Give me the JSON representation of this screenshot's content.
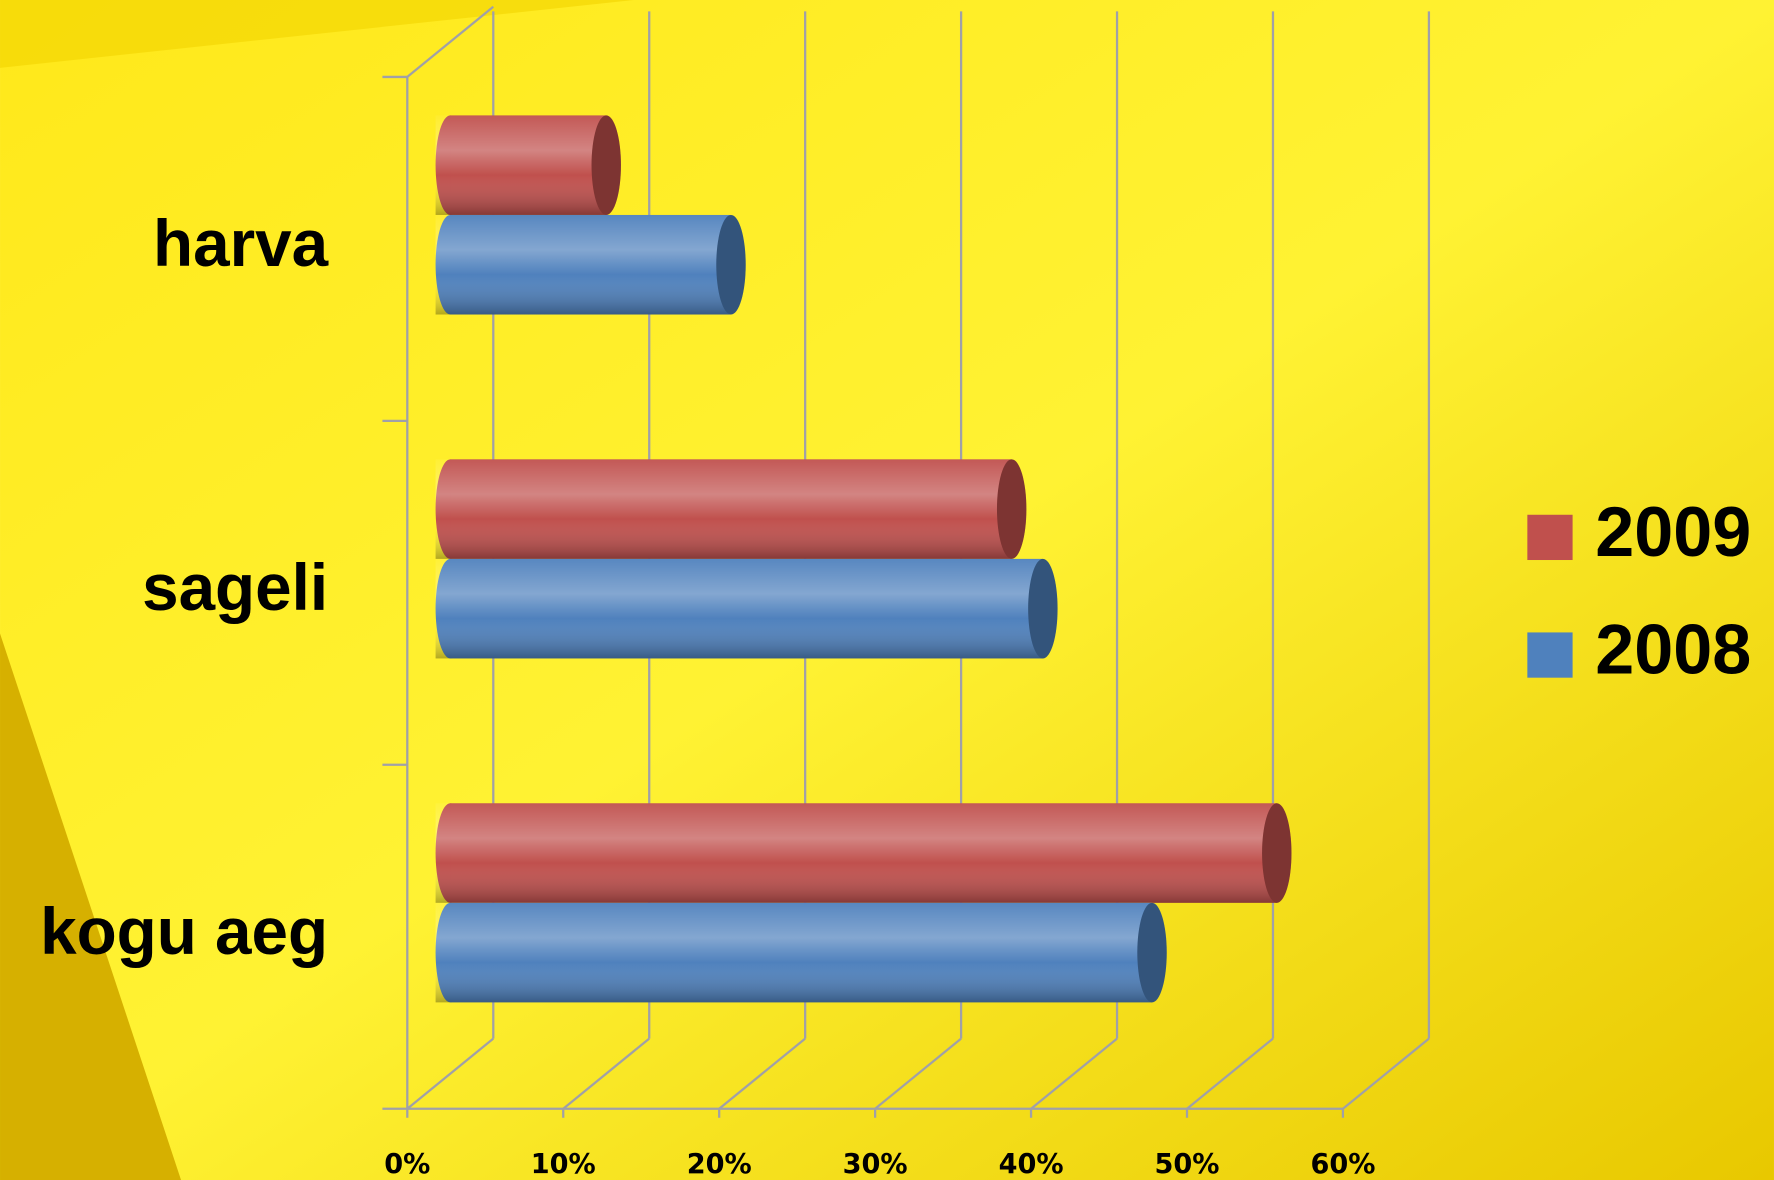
{
  "chart_data": {
    "type": "bar3d_horizontal",
    "categories": [
      "harva",
      "sageli",
      "kogu aeg"
    ],
    "series": [
      {
        "name": "2009",
        "color": "#c0504d",
        "values": [
          10,
          36,
          53
        ]
      },
      {
        "name": "2008",
        "color": "#4f81bd",
        "values": [
          18,
          38,
          45
        ]
      }
    ],
    "xlim": [
      0,
      60
    ],
    "xticks": [
      {
        "value": 0,
        "label": "0%"
      },
      {
        "value": 10,
        "label": "10%"
      },
      {
        "value": 20,
        "label": "20%"
      },
      {
        "value": 30,
        "label": "30%"
      },
      {
        "value": 40,
        "label": "40%"
      },
      {
        "value": 50,
        "label": "50%"
      },
      {
        "value": 60,
        "label": "60%"
      }
    ],
    "grid": true,
    "legend": "right"
  }
}
